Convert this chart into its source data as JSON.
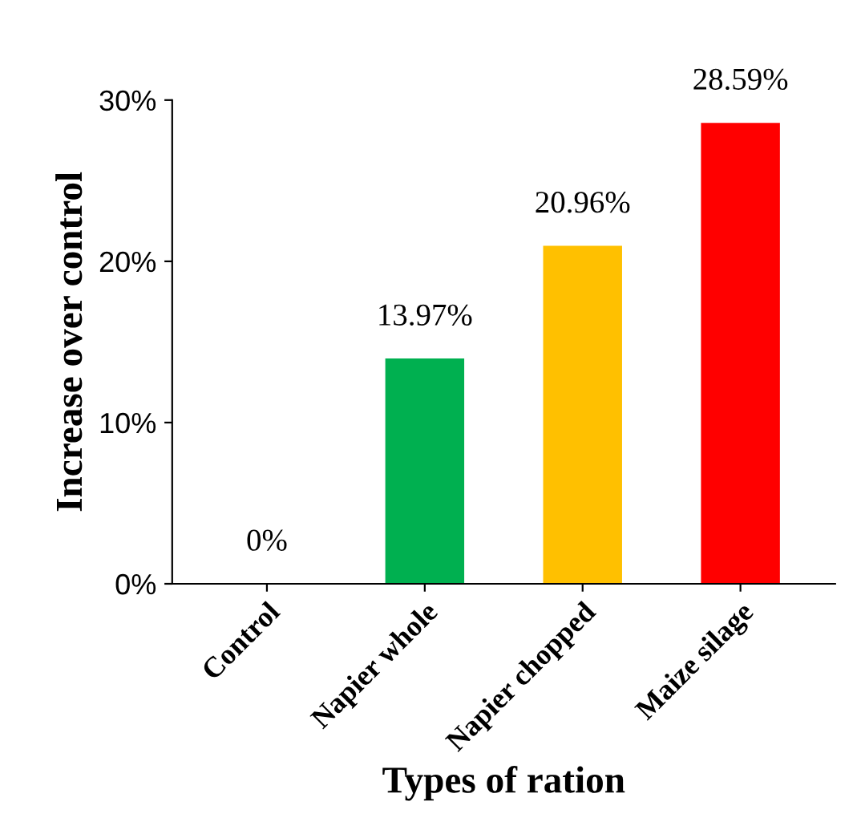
{
  "chart_data": {
    "type": "bar",
    "xlabel": "Types of ration",
    "ylabel": "Increase over control",
    "categories": [
      "Control",
      "Napier whole",
      "Napier chopped",
      "Maize silage"
    ],
    "values": [
      0,
      13.97,
      20.96,
      28.59
    ],
    "colors": [
      "#1f3864",
      "#00b050",
      "#ffc000",
      "#ff0000"
    ],
    "value_labels": [
      "0%",
      "13.97%",
      "20.96%",
      "28.59%"
    ],
    "ylim": [
      0,
      30
    ],
    "yticks": [
      {
        "value": 0,
        "label": "0%"
      },
      {
        "value": 10,
        "label": "10%"
      },
      {
        "value": 20,
        "label": "20%"
      },
      {
        "value": 30,
        "label": "30%"
      }
    ],
    "grid": false,
    "legend": false
  }
}
